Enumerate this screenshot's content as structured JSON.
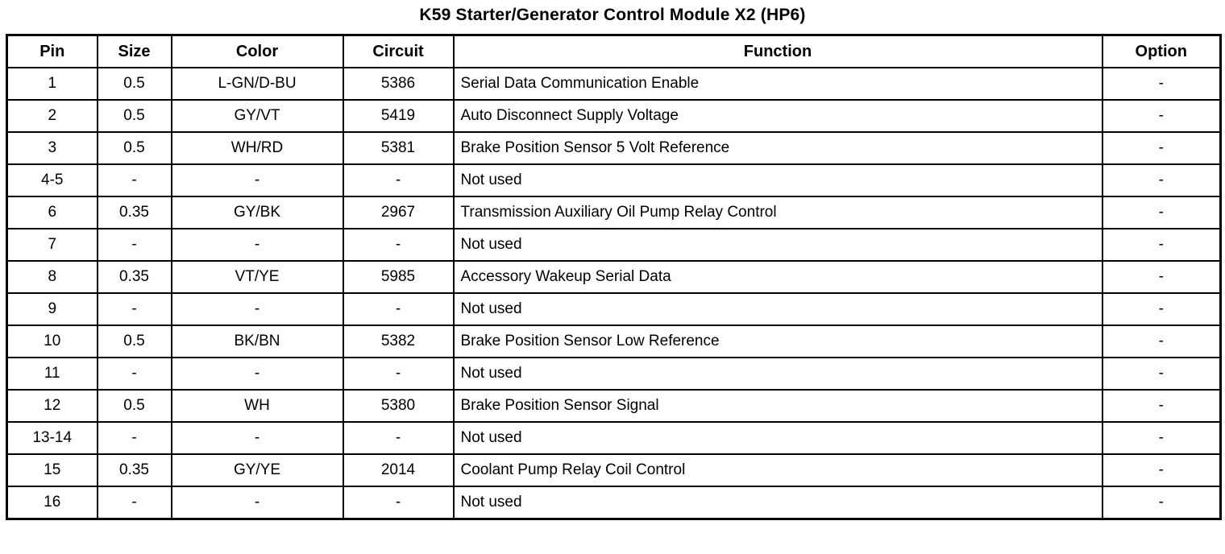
{
  "title": "K59 Starter/Generator Control Module X2 (HP6)",
  "table": {
    "columns": [
      "Pin",
      "Size",
      "Color",
      "Circuit",
      "Function",
      "Option"
    ],
    "rows": [
      {
        "pin": "1",
        "size": "0.5",
        "color": "L-GN/D-BU",
        "circuit": "5386",
        "function": "Serial Data Communication Enable",
        "option": "-"
      },
      {
        "pin": "2",
        "size": "0.5",
        "color": "GY/VT",
        "circuit": "5419",
        "function": "Auto Disconnect Supply Voltage",
        "option": "-"
      },
      {
        "pin": "3",
        "size": "0.5",
        "color": "WH/RD",
        "circuit": "5381",
        "function": "Brake Position Sensor 5 Volt Reference",
        "option": "-"
      },
      {
        "pin": "4-5",
        "size": "-",
        "color": "-",
        "circuit": "-",
        "function": "Not used",
        "option": "-"
      },
      {
        "pin": "6",
        "size": "0.35",
        "color": "GY/BK",
        "circuit": "2967",
        "function": "Transmission Auxiliary Oil Pump Relay Control",
        "option": "-"
      },
      {
        "pin": "7",
        "size": "-",
        "color": "-",
        "circuit": "-",
        "function": "Not used",
        "option": "-"
      },
      {
        "pin": "8",
        "size": "0.35",
        "color": "VT/YE",
        "circuit": "5985",
        "function": "Accessory Wakeup Serial Data",
        "option": "-"
      },
      {
        "pin": "9",
        "size": "-",
        "color": "-",
        "circuit": "-",
        "function": "Not used",
        "option": "-"
      },
      {
        "pin": "10",
        "size": "0.5",
        "color": "BK/BN",
        "circuit": "5382",
        "function": "Brake Position Sensor Low Reference",
        "option": "-"
      },
      {
        "pin": "11",
        "size": "-",
        "color": "-",
        "circuit": "-",
        "function": "Not used",
        "option": "-"
      },
      {
        "pin": "12",
        "size": "0.5",
        "color": "WH",
        "circuit": "5380",
        "function": "Brake Position Sensor Signal",
        "option": "-"
      },
      {
        "pin": "13-14",
        "size": "-",
        "color": "-",
        "circuit": "-",
        "function": "Not used",
        "option": "-"
      },
      {
        "pin": "15",
        "size": "0.35",
        "color": "GY/YE",
        "circuit": "2014",
        "function": "Coolant Pump Relay Coil Control",
        "option": "-"
      },
      {
        "pin": "16",
        "size": "-",
        "color": "-",
        "circuit": "-",
        "function": "Not used",
        "option": "-"
      }
    ]
  }
}
